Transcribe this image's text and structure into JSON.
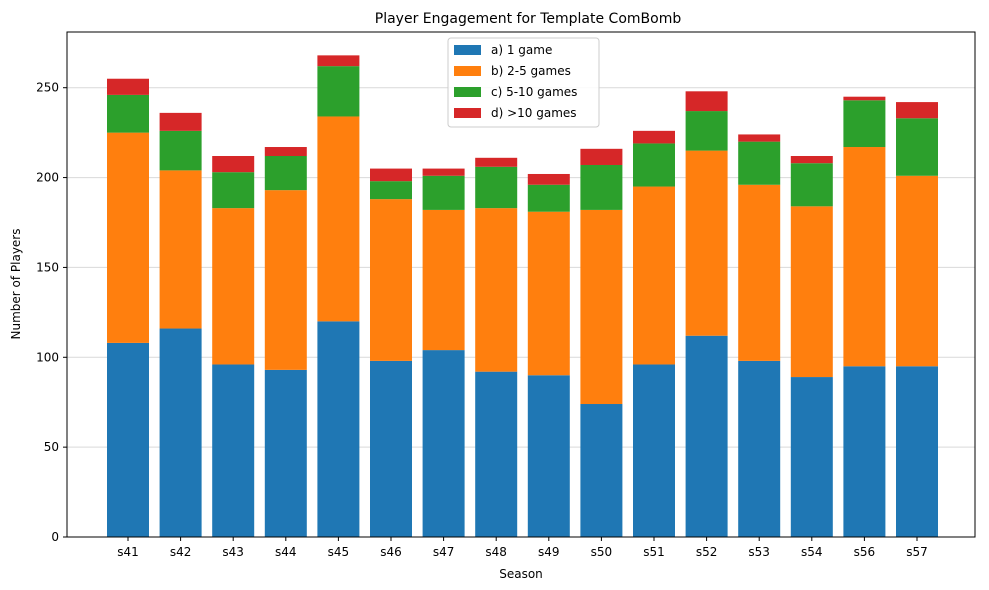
{
  "chart_data": {
    "type": "bar",
    "stacked": true,
    "title": "Player Engagement for Template ComBomb",
    "xlabel": "Season",
    "ylabel": "Number of Players",
    "ylim": [
      0,
      281
    ],
    "yticks": [
      0,
      50,
      100,
      150,
      200,
      250
    ],
    "grid": "horizontal",
    "legend_position": "top-center",
    "categories": [
      "s41",
      "s42",
      "s43",
      "s44",
      "s45",
      "s46",
      "s47",
      "s48",
      "s49",
      "s50",
      "s51",
      "s52",
      "s53",
      "s54",
      "s56",
      "s57"
    ],
    "series": [
      {
        "name": "a) 1 game",
        "color": "#1f77b4",
        "values": [
          108,
          116,
          96,
          93,
          120,
          98,
          104,
          92,
          90,
          74,
          96,
          112,
          98,
          89,
          95,
          95
        ]
      },
      {
        "name": "b) 2-5 games",
        "color": "#ff7f0e",
        "values": [
          117,
          88,
          87,
          100,
          114,
          90,
          78,
          91,
          91,
          108,
          99,
          103,
          98,
          95,
          122,
          106
        ]
      },
      {
        "name": "c) 5-10 games",
        "color": "#2ca02c",
        "values": [
          21,
          22,
          20,
          19,
          28,
          10,
          19,
          23,
          15,
          25,
          24,
          22,
          24,
          24,
          26,
          32
        ]
      },
      {
        "name": "d) >10 games",
        "color": "#d62728",
        "values": [
          9,
          10,
          9,
          5,
          6,
          7,
          4,
          5,
          6,
          9,
          7,
          11,
          4,
          4,
          2,
          9
        ]
      }
    ]
  }
}
